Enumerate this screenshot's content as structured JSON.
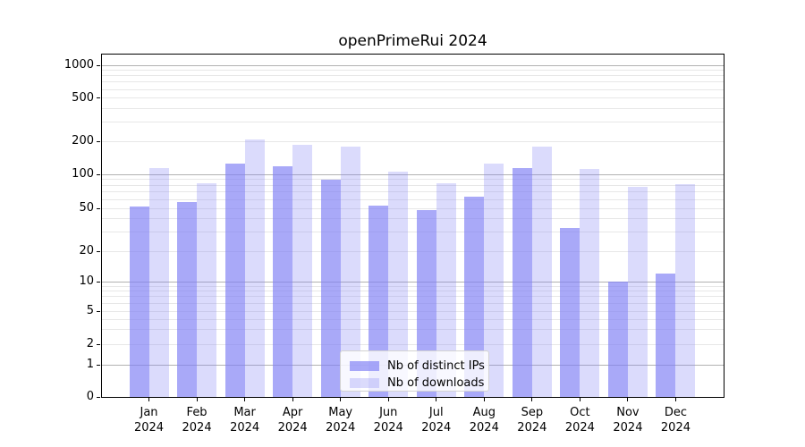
{
  "chart_data": {
    "type": "bar",
    "title": "openPrimeRui 2024",
    "categories": [
      "Jan 2024",
      "Feb 2024",
      "Mar 2024",
      "Apr 2024",
      "May 2024",
      "Jun 2024",
      "Jul 2024",
      "Aug 2024",
      "Sep 2024",
      "Oct 2024",
      "Nov 2024",
      "Dec 2024"
    ],
    "series": [
      {
        "name": "Nb of distinct IPs",
        "color": "#8080f5",
        "alpha": 0.68,
        "values": [
          52,
          57,
          125,
          119,
          90,
          53,
          48,
          63,
          114,
          33,
          10,
          12
        ]
      },
      {
        "name": "Nb of downloads",
        "color": "#8080f5",
        "alpha": 0.285,
        "values": [
          115,
          83,
          207,
          185,
          180,
          106,
          84,
          125,
          178,
          113,
          77,
          82
        ]
      }
    ],
    "xlabel": "",
    "ylabel": "",
    "yscale": "symlog",
    "yticks": [
      0,
      1,
      2,
      5,
      10,
      20,
      50,
      100,
      200,
      500,
      1000
    ],
    "ylim": [
      0,
      1280
    ],
    "grid": {
      "orientation": "horizontal",
      "major_values": [
        1,
        10,
        100,
        1000
      ],
      "minor": "log decades 2-9",
      "major_color": "#b2b2b2",
      "minor_color": "#e7e7e7"
    },
    "legend_position": "lower center inside plot",
    "colors": {
      "axis": "#000000",
      "background": "#ffffff",
      "bar_base": "#8080f5"
    }
  }
}
